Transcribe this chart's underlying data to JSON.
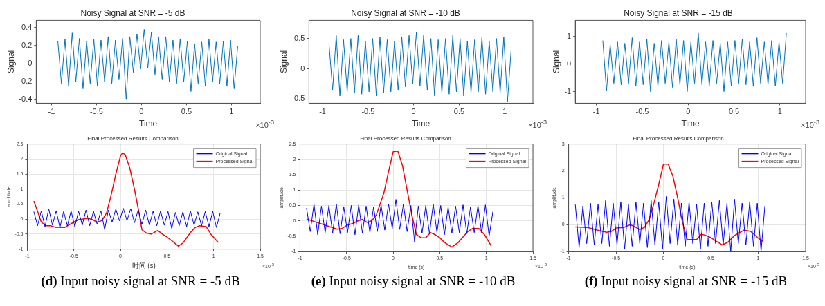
{
  "chart_data": [
    {
      "type": "line",
      "title": "Noisy Signal at SNR = -5 dB",
      "xlabel": "Time",
      "ylabel": "Signal",
      "xlim": [
        -1.17,
        1.32
      ],
      "ylim": [
        -0.44,
        0.48
      ],
      "xticks": [
        -1,
        -0.5,
        0,
        0.5,
        1
      ],
      "yticks": [
        -0.4,
        -0.2,
        0,
        0.2,
        0.4
      ],
      "grid": false,
      "legend": false,
      "annotations": [
        "×10$^{-3}$"
      ],
      "series": [
        {
          "color": "#0072bd",
          "x": [
            -0.93,
            -0.89,
            -0.85,
            -0.81,
            -0.77,
            -0.73,
            -0.69,
            -0.65,
            -0.61,
            -0.57,
            -0.53,
            -0.49,
            -0.45,
            -0.41,
            -0.37,
            -0.33,
            -0.29,
            -0.25,
            -0.21,
            -0.17,
            -0.13,
            -0.09,
            -0.05,
            -0.01,
            0.03,
            0.07,
            0.11,
            0.15,
            0.19,
            0.23,
            0.27,
            0.31,
            0.35,
            0.39,
            0.43,
            0.47,
            0.51,
            0.55,
            0.59,
            0.63,
            0.67,
            0.71,
            0.75,
            0.79,
            0.83,
            0.87,
            0.91,
            0.95,
            0.99,
            1.03,
            1.07
          ],
          "values": [
            0.25,
            -0.22,
            0.27,
            -0.25,
            0.34,
            -0.2,
            0.28,
            -0.28,
            0.25,
            -0.22,
            0.27,
            -0.25,
            0.26,
            -0.2,
            0.3,
            -0.22,
            0.26,
            -0.18,
            0.28,
            -0.4,
            0.3,
            -0.1,
            0.33,
            -0.06,
            0.38,
            -0.05,
            0.35,
            -0.12,
            0.3,
            -0.18,
            0.3,
            -0.2,
            0.26,
            -0.22,
            0.27,
            -0.2,
            0.25,
            -0.31,
            0.22,
            -0.22,
            0.24,
            -0.25,
            0.27,
            -0.2,
            0.24,
            -0.22,
            0.25,
            -0.25,
            0.26,
            -0.28,
            0.2
          ]
        }
      ]
    },
    {
      "type": "line",
      "title": "Noisy Signal at SNR = -10 dB",
      "xlabel": "Time",
      "ylabel": "Signal",
      "xlim": [
        -1.15,
        1.31
      ],
      "ylim": [
        -0.57,
        0.8
      ],
      "xticks": [
        -1,
        -0.5,
        0,
        0.5,
        1
      ],
      "yticks": [
        -0.5,
        0,
        0.5
      ],
      "grid": false,
      "legend": false,
      "annotations": [
        "×10$^{-3}$"
      ],
      "series": [
        {
          "color": "#0072bd",
          "x": [
            -0.93,
            -0.89,
            -0.85,
            -0.81,
            -0.77,
            -0.73,
            -0.69,
            -0.65,
            -0.61,
            -0.57,
            -0.53,
            -0.49,
            -0.45,
            -0.41,
            -0.37,
            -0.33,
            -0.29,
            -0.25,
            -0.21,
            -0.17,
            -0.13,
            -0.09,
            -0.05,
            -0.01,
            0.03,
            0.07,
            0.11,
            0.15,
            0.19,
            0.23,
            0.27,
            0.31,
            0.35,
            0.39,
            0.43,
            0.47,
            0.51,
            0.55,
            0.59,
            0.63,
            0.67,
            0.71,
            0.75,
            0.79,
            0.83,
            0.87,
            0.91,
            0.95,
            0.99,
            1.03,
            1.07
          ],
          "values": [
            0.42,
            -0.35,
            0.55,
            -0.45,
            0.48,
            -0.38,
            0.5,
            -0.4,
            0.55,
            -0.42,
            0.45,
            -0.38,
            0.5,
            -0.45,
            0.52,
            -0.4,
            0.48,
            -0.38,
            0.45,
            -0.35,
            0.52,
            -0.3,
            0.55,
            -0.25,
            0.6,
            -0.28,
            0.55,
            -0.35,
            0.5,
            -0.45,
            0.48,
            -0.4,
            0.5,
            -0.42,
            0.55,
            -0.38,
            0.5,
            -0.45,
            0.45,
            -0.4,
            0.48,
            -0.38,
            0.52,
            -0.42,
            0.45,
            -0.38,
            0.5,
            -0.4,
            0.52,
            -0.55,
            0.3
          ]
        }
      ]
    },
    {
      "type": "line",
      "title": "Noisy Signal at SNR = -15 dB",
      "xlabel": "Time",
      "ylabel": "Signal",
      "xlim": [
        -1.23,
        1.28
      ],
      "ylim": [
        -1.42,
        1.58
      ],
      "xticks": [
        -1,
        -0.5,
        0,
        0.5,
        1
      ],
      "yticks": [
        -1,
        0,
        1
      ],
      "grid": false,
      "legend": false,
      "annotations": [
        "×10$^{-3}$"
      ],
      "series": [
        {
          "color": "#0072bd",
          "x": [
            -0.93,
            -0.89,
            -0.85,
            -0.81,
            -0.77,
            -0.73,
            -0.69,
            -0.65,
            -0.61,
            -0.57,
            -0.53,
            -0.49,
            -0.45,
            -0.41,
            -0.37,
            -0.33,
            -0.29,
            -0.25,
            -0.21,
            -0.17,
            -0.13,
            -0.09,
            -0.05,
            -0.01,
            0.03,
            0.07,
            0.11,
            0.15,
            0.19,
            0.23,
            0.27,
            0.31,
            0.35,
            0.39,
            0.43,
            0.47,
            0.51,
            0.55,
            0.59,
            0.63,
            0.67,
            0.71,
            0.75,
            0.79,
            0.83,
            0.87,
            0.91,
            0.95,
            0.99,
            1.03,
            1.07
          ],
          "values": [
            0.85,
            -0.98,
            0.7,
            -0.7,
            0.8,
            -0.75,
            0.75,
            -0.7,
            0.95,
            -0.8,
            0.8,
            -0.75,
            0.9,
            -1.0,
            0.75,
            -0.8,
            0.85,
            -0.7,
            0.8,
            -0.85,
            0.9,
            -0.75,
            0.85,
            -1.0,
            0.8,
            -0.7,
            1.12,
            -0.75,
            0.8,
            -0.8,
            0.85,
            -0.7,
            0.75,
            -1.0,
            0.8,
            -0.8,
            0.85,
            -0.7,
            0.9,
            -0.75,
            0.8,
            -0.8,
            0.95,
            -0.7,
            0.8,
            -0.75,
            0.85,
            -0.8,
            0.8,
            -0.7,
            1.12
          ]
        }
      ]
    },
    {
      "type": "line",
      "title": "Final Processed Results Comparison",
      "xlabel": "时间 (s)",
      "ylabel": "amplitude",
      "xlim": [
        -1,
        1.5
      ],
      "ylim": [
        -1,
        2.5
      ],
      "xticks": [
        -1,
        -0.5,
        0,
        0.5,
        1,
        1.5
      ],
      "yticks": [
        -1,
        -0.5,
        0,
        0.5,
        1,
        1.5,
        2,
        2.5
      ],
      "grid": true,
      "legend": "top right",
      "annotations": [
        "×10$^{-3}$",
        "(d) Input noisy signal at SNR = -5 dB"
      ],
      "series": [
        {
          "name": "Original Signal",
          "color": "#0000ff",
          "x": [
            -0.93,
            -0.89,
            -0.85,
            -0.81,
            -0.77,
            -0.73,
            -0.69,
            -0.65,
            -0.61,
            -0.57,
            -0.53,
            -0.49,
            -0.45,
            -0.41,
            -0.37,
            -0.33,
            -0.29,
            -0.25,
            -0.21,
            -0.17,
            -0.13,
            -0.09,
            -0.05,
            -0.01,
            0.03,
            0.07,
            0.11,
            0.15,
            0.19,
            0.23,
            0.27,
            0.31,
            0.35,
            0.39,
            0.43,
            0.47,
            0.51,
            0.55,
            0.59,
            0.63,
            0.67,
            0.71,
            0.75,
            0.79,
            0.83,
            0.87,
            0.91,
            0.95,
            0.99,
            1.03,
            1.07
          ],
          "values": [
            0.25,
            -0.22,
            0.27,
            -0.25,
            0.34,
            -0.2,
            0.28,
            -0.28,
            0.25,
            -0.22,
            0.27,
            -0.25,
            0.26,
            -0.2,
            0.3,
            -0.22,
            0.26,
            -0.18,
            0.28,
            -0.35,
            0.3,
            -0.1,
            0.33,
            -0.06,
            0.36,
            -0.05,
            0.35,
            -0.12,
            0.3,
            -0.18,
            0.3,
            -0.2,
            0.26,
            -0.22,
            0.27,
            -0.2,
            0.25,
            -0.31,
            0.22,
            -0.22,
            0.24,
            -0.25,
            0.27,
            -0.2,
            0.24,
            -0.22,
            0.25,
            -0.25,
            0.26,
            -0.28,
            0.2
          ]
        },
        {
          "name": "Processed Signal",
          "color": "#ff0000",
          "x": [
            -0.93,
            -0.9,
            -0.85,
            -0.8,
            -0.75,
            -0.7,
            -0.6,
            -0.5,
            -0.45,
            -0.35,
            -0.3,
            -0.25,
            -0.2,
            -0.15,
            -0.1,
            -0.05,
            0,
            0.02,
            0.05,
            0.1,
            0.15,
            0.2,
            0.23,
            0.28,
            0.33,
            0.4,
            0.45,
            0.5,
            0.55,
            0.62,
            0.67,
            0.75,
            0.8,
            0.85,
            0.92,
            0.97,
            1.05
          ],
          "values": [
            0.6,
            0.35,
            -0.1,
            -0.22,
            -0.22,
            -0.27,
            -0.28,
            -0.1,
            -0.02,
            0.03,
            -0.02,
            -0.1,
            -0.05,
            0.2,
            0.8,
            1.5,
            2.1,
            2.2,
            2.15,
            1.7,
            1.0,
            0.2,
            -0.35,
            -0.47,
            -0.5,
            -0.38,
            -0.5,
            -0.6,
            -0.72,
            -0.9,
            -0.8,
            -0.45,
            -0.28,
            -0.22,
            -0.25,
            -0.5,
            -0.78
          ]
        }
      ]
    },
    {
      "type": "line",
      "title": "Final Processed Results Comparison",
      "xlabel": "time (s)",
      "ylabel": "amplitude",
      "xlim": [
        -1,
        1.5
      ],
      "ylim": [
        -1,
        2.5
      ],
      "xticks": [
        -1,
        -0.5,
        0,
        0.5,
        1,
        1.5
      ],
      "yticks": [
        -1,
        -0.5,
        0,
        0.5,
        1,
        1.5,
        2,
        2.5
      ],
      "grid": true,
      "legend": "top right",
      "annotations": [
        "×10$^{-3}$",
        "(e) Input noisy signal at SNR = -10 dB"
      ],
      "series": [
        {
          "name": "Original Signal",
          "color": "#0000ff",
          "x": [
            -0.93,
            -0.89,
            -0.85,
            -0.81,
            -0.77,
            -0.73,
            -0.69,
            -0.65,
            -0.61,
            -0.57,
            -0.53,
            -0.49,
            -0.45,
            -0.41,
            -0.37,
            -0.33,
            -0.29,
            -0.25,
            -0.21,
            -0.17,
            -0.13,
            -0.09,
            -0.05,
            -0.01,
            0.03,
            0.07,
            0.11,
            0.15,
            0.19,
            0.23,
            0.27,
            0.31,
            0.35,
            0.39,
            0.43,
            0.47,
            0.51,
            0.55,
            0.59,
            0.63,
            0.67,
            0.71,
            0.75,
            0.79,
            0.83,
            0.87,
            0.91,
            0.95,
            0.99,
            1.03,
            1.07
          ],
          "values": [
            0.42,
            -0.35,
            0.55,
            -0.45,
            0.48,
            -0.38,
            0.5,
            -0.4,
            0.55,
            -0.42,
            0.45,
            -0.38,
            0.5,
            -0.45,
            0.52,
            -0.4,
            0.48,
            -0.38,
            0.45,
            -0.35,
            0.52,
            -0.3,
            0.55,
            -0.25,
            0.7,
            -0.28,
            0.55,
            -0.35,
            0.5,
            -0.68,
            0.48,
            -0.4,
            0.5,
            -0.42,
            0.55,
            -0.38,
            0.5,
            -0.45,
            0.45,
            -0.4,
            0.48,
            -0.38,
            0.52,
            -0.42,
            0.45,
            -0.38,
            0.5,
            -0.4,
            0.52,
            -0.5,
            0.3
          ]
        },
        {
          "name": "Processed Signal",
          "color": "#ff0000",
          "x": [
            -0.93,
            -0.85,
            -0.75,
            -0.65,
            -0.6,
            -0.55,
            -0.5,
            -0.43,
            -0.38,
            -0.33,
            -0.28,
            -0.23,
            -0.18,
            -0.1,
            -0.05,
            0,
            0.05,
            0.1,
            0.15,
            0.2,
            0.25,
            0.3,
            0.35,
            0.4,
            0.45,
            0.5,
            0.55,
            0.63,
            0.7,
            0.8,
            0.85,
            0.92,
            0.98,
            1.05
          ],
          "values": [
            0.06,
            -0.02,
            -0.12,
            -0.22,
            -0.27,
            -0.25,
            -0.15,
            -0.08,
            0,
            0.05,
            -0.05,
            0,
            0.2,
            0.9,
            1.6,
            2.25,
            2.27,
            1.8,
            1.0,
            0.2,
            -0.45,
            -0.55,
            -0.55,
            -0.38,
            -0.45,
            -0.55,
            -0.7,
            -0.85,
            -0.7,
            -0.35,
            -0.25,
            -0.25,
            -0.45,
            -0.8
          ]
        }
      ]
    },
    {
      "type": "line",
      "title": "Final Processed Results Comparison",
      "xlabel": "time (s)",
      "ylabel": "amplitude",
      "xlim": [
        -1,
        1.5
      ],
      "ylim": [
        -1,
        3
      ],
      "xticks": [
        -1,
        -0.5,
        0,
        0.5,
        1,
        1.5
      ],
      "yticks": [
        -1,
        0,
        1,
        2,
        3
      ],
      "grid": true,
      "legend": "top right",
      "annotations": [
        "×10$^{-3}$",
        "(f) Input noisy signal at SNR = -15 dB"
      ],
      "series": [
        {
          "name": "Original Signal",
          "color": "#0000ff",
          "x": [
            -0.93,
            -0.89,
            -0.85,
            -0.81,
            -0.77,
            -0.73,
            -0.69,
            -0.65,
            -0.61,
            -0.57,
            -0.53,
            -0.49,
            -0.45,
            -0.41,
            -0.37,
            -0.33,
            -0.29,
            -0.25,
            -0.21,
            -0.17,
            -0.13,
            -0.09,
            -0.05,
            -0.01,
            0.03,
            0.07,
            0.11,
            0.15,
            0.19,
            0.23,
            0.27,
            0.31,
            0.35,
            0.39,
            0.43,
            0.47,
            0.51,
            0.55,
            0.59,
            0.63,
            0.67,
            0.71,
            0.75,
            0.79,
            0.83,
            0.87,
            0.91,
            0.95,
            0.99,
            1.03,
            1.07
          ],
          "values": [
            0.75,
            -0.85,
            0.7,
            -0.7,
            0.8,
            -0.75,
            0.75,
            -0.7,
            0.9,
            -0.8,
            0.8,
            -0.75,
            0.85,
            -0.9,
            0.75,
            -0.8,
            0.85,
            -0.7,
            0.8,
            -0.85,
            0.9,
            -0.75,
            0.85,
            -0.9,
            1.05,
            -0.7,
            0.95,
            -0.75,
            0.8,
            -0.8,
            0.85,
            -0.7,
            0.75,
            -0.9,
            0.8,
            -0.8,
            0.85,
            -0.7,
            0.9,
            -0.75,
            0.8,
            -1.0,
            0.95,
            -0.7,
            0.8,
            -0.75,
            0.85,
            -0.8,
            0.8,
            -1.0,
            0.7
          ]
        },
        {
          "name": "Processed Signal",
          "color": "#ff0000",
          "x": [
            -0.93,
            -0.8,
            -0.7,
            -0.6,
            -0.55,
            -0.5,
            -0.42,
            -0.35,
            -0.3,
            -0.25,
            -0.2,
            -0.15,
            -0.1,
            -0.05,
            0,
            0.05,
            0.1,
            0.15,
            0.2,
            0.25,
            0.3,
            0.35,
            0.4,
            0.45,
            0.5,
            0.55,
            0.62,
            0.68,
            0.75,
            0.85,
            0.92,
            1.0,
            1.05
          ],
          "values": [
            -0.08,
            -0.1,
            -0.2,
            -0.28,
            -0.25,
            -0.12,
            -0.1,
            0,
            -0.08,
            -0.18,
            -0.1,
            0.2,
            0.8,
            1.5,
            2.25,
            2.25,
            1.8,
            1.0,
            0.1,
            -0.55,
            -0.55,
            -0.55,
            -0.35,
            -0.4,
            -0.48,
            -0.6,
            -0.75,
            -0.65,
            -0.4,
            -0.2,
            -0.25,
            -0.5,
            -0.62
          ]
        }
      ]
    }
  ]
}
